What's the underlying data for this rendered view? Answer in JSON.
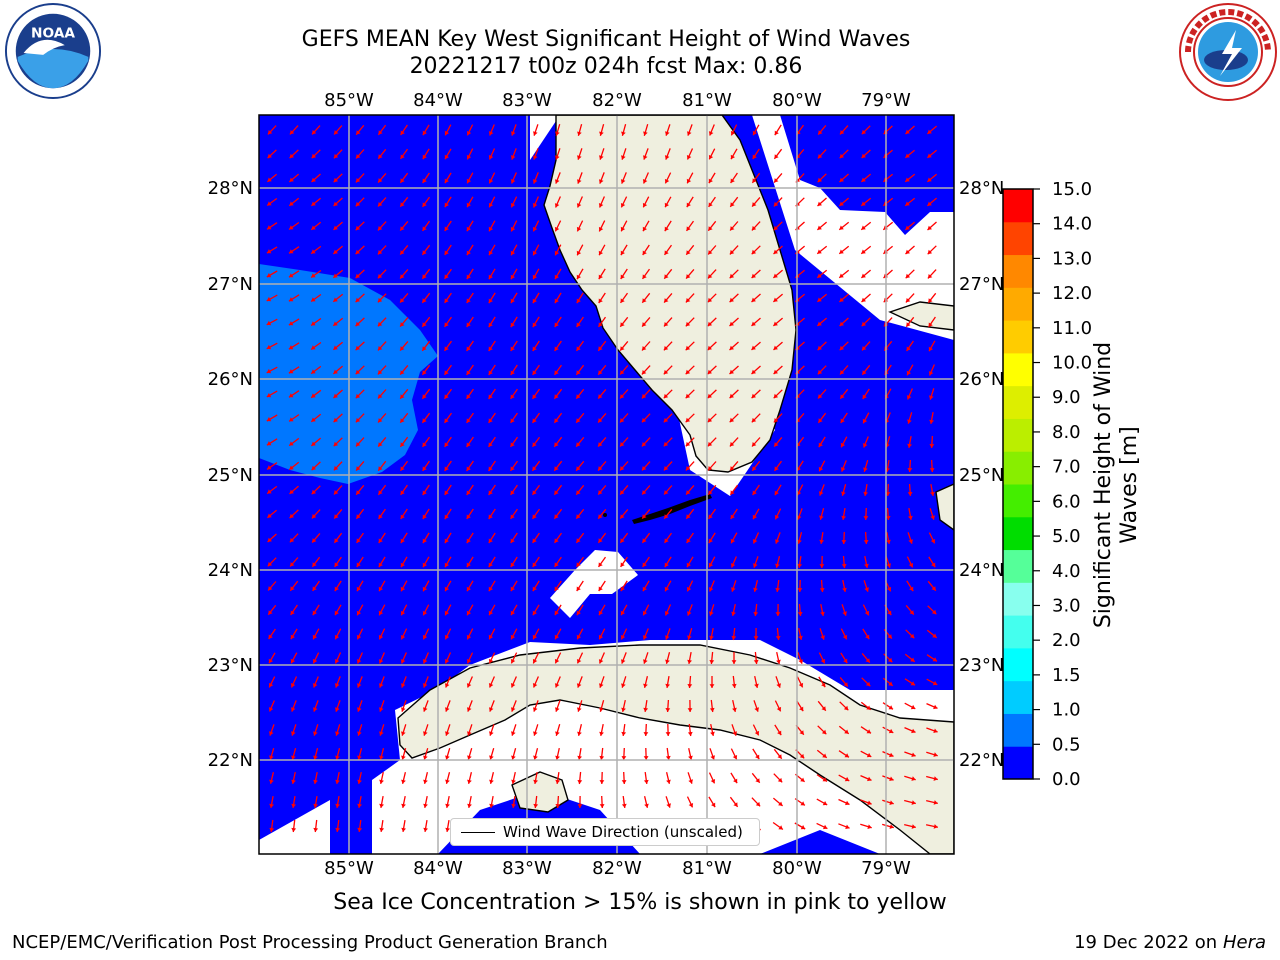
{
  "title": {
    "line1": "GEFS MEAN Key West Significant Height of Wind Waves",
    "line2": "20221217 t00z 024h fcst   Max: 0.86"
  },
  "logos": {
    "left": {
      "icon": "noaa-logo",
      "text": "NOAA"
    },
    "right": {
      "icon": "nws-logo"
    }
  },
  "map": {
    "lon_range": [
      -86.0,
      -78.3
    ],
    "lat_range": [
      21.0,
      28.75
    ],
    "lon_ticks": [
      "85°W",
      "84°W",
      "83°W",
      "82°W",
      "81°W",
      "80°W",
      "79°W"
    ],
    "lat_ticks": [
      "28°N",
      "27°N",
      "26°N",
      "25°N",
      "24°N",
      "23°N",
      "22°N"
    ],
    "grid": true,
    "ocean_color": "#0000ff",
    "wave_05_10_color": "#0077ff",
    "land_color": "#efefdf",
    "arrow_color": "#ff0000"
  },
  "legend": {
    "label": "Wind Wave Direction (unscaled)",
    "position": "lower-center"
  },
  "colorbar": {
    "label": "Significant Height of Wind Waves [m]",
    "ticks": [
      "0.0",
      "0.5",
      "1.0",
      "1.5",
      "2.0",
      "3.0",
      "4.0",
      "5.0",
      "6.0",
      "7.0",
      "8.0",
      "9.0",
      "10.0",
      "11.0",
      "12.0",
      "13.0",
      "14.0",
      "15.0"
    ],
    "colors": [
      "#0000ff",
      "#0077ff",
      "#00ccff",
      "#00ffff",
      "#44ffee",
      "#88ffee",
      "#55ff99",
      "#00dd00",
      "#44ee00",
      "#88ee00",
      "#bbee00",
      "#ddee00",
      "#ffff00",
      "#ffcc00",
      "#ffaa00",
      "#ff8800",
      "#ff4400",
      "#ff0000"
    ]
  },
  "footer": {
    "note": "Sea Ice Concentration > 15% is shown in pink to yellow",
    "left": "NCEP/EMC/Verification Post Processing Product Generation Branch",
    "right_date": "19 Dec 2022 on",
    "right_host": "Hera"
  }
}
